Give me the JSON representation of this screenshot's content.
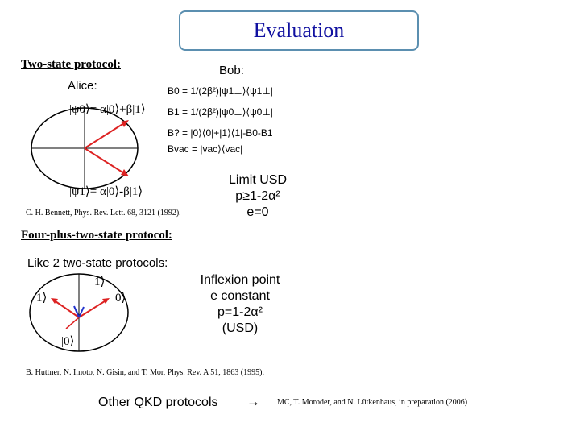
{
  "title": "Evaluation",
  "two_state": {
    "heading": "Two-state protocol:",
    "alice_label": "Alice:",
    "bob_label": "Bob:",
    "psi0": "|ψ0⟩= α|0⟩+β|1⟩",
    "psi1": "|ψ1⟩= α|0⟩-β|1⟩",
    "b0": "B0 = 1/(2β²)|ψ1⊥⟩⟨ψ1⊥|",
    "b1": "B1 = 1/(2β²)|ψ0⊥⟩⟨ψ0⊥|",
    "b_q": "B? = |0⟩⟨0|+|1⟩⟨1|-B0-B1",
    "b_vac": "Bvac = |vac⟩⟨vac|",
    "reference": "C. H. Bennett, Phys. Rev. Lett. 68, 3121 (1992).",
    "limit": {
      "line1": "Limit USD",
      "line2": "p≥1-2α²",
      "line3": "e=0"
    }
  },
  "four_plus_two": {
    "heading": "Four-plus-two-state protocol:",
    "like": "Like 2 two-state protocols:",
    "ket1_top": "|1⟩",
    "ket1_left": "|1⟩",
    "ket0_right": "|0⟩",
    "ket0_bottom": "|0⟩",
    "inflexion": {
      "line1": "Inflexion point",
      "line2": "e constant",
      "line3": "p=1-2α²",
      "line4": "(USD)"
    },
    "reference": "B. Huttner, N. Imoto, N. Gisin, and T. Mor, Phys. Rev. A 51, 1863 (1995)."
  },
  "footer": {
    "other": "Other QKD protocols",
    "arrow": "→",
    "reference": "MC, T. Moroder, and N. Lütkenhaus, in preparation (2006)"
  },
  "colors": {
    "title_text": "#1010a0",
    "title_border": "#5b8fb0",
    "state_vector": "#dd2222",
    "small_vector": "#2233cc"
  }
}
